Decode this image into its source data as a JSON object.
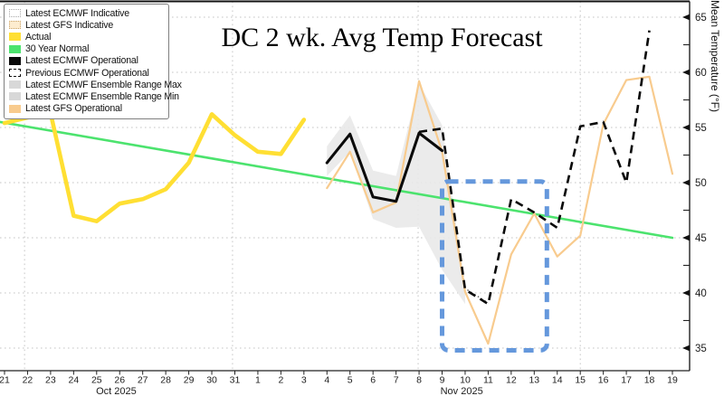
{
  "title": "DC 2 wk. Avg Temp Forecast",
  "axes": {
    "y_label": "Mean Temperature (°F)",
    "y_tick_labels": [
      "35",
      "40",
      "45",
      "50",
      "55",
      "60",
      "65"
    ],
    "months": [
      {
        "label": "Oct 2025",
        "day": 4.85
      },
      {
        "label": "Nov 2025",
        "day": 19.85
      }
    ]
  },
  "legend": {
    "items": [
      {
        "label": "Latest ECMWF Indicative",
        "fill": "#ffffff",
        "border": "dotted",
        "border_color": "#a8a8a8"
      },
      {
        "label": "Latest GFS Indicative",
        "fill": "#fdeccf",
        "border": "dotted",
        "border_color": "#c9a36a"
      },
      {
        "label": "Actual",
        "fill": "#FFDF33",
        "border": "none",
        "border_color": ""
      },
      {
        "label": "30 Year Normal",
        "fill": "#4CE36E",
        "border": "none",
        "border_color": ""
      },
      {
        "label": "Latest ECMWF Operational",
        "fill": "#0a0a0a",
        "border": "none",
        "border_color": ""
      },
      {
        "label": "Previous ECMWF Operational",
        "fill": "#ffffff",
        "border": "dashed",
        "border_color": "#111111"
      },
      {
        "label": "Latest ECMWF Ensemble Range Max",
        "fill": "#d8d8d8",
        "border": "none",
        "border_color": ""
      },
      {
        "label": "Latest ECMWF Ensemble Range Min",
        "fill": "#d8d8d8",
        "border": "none",
        "border_color": ""
      },
      {
        "label": "Latest GFS Operational",
        "fill": "#F8CB8E",
        "border": "none",
        "border_color": ""
      }
    ]
  },
  "chart_data": {
    "type": "line",
    "title": "DC 2 wk. Avg Temp Forecast",
    "ylabel": "Mean Temperature (°F)",
    "x_range": "Oct 21 2025 - Nov 19 2025",
    "ylim": [
      33,
      66.3
    ],
    "x_tick_labels": [
      "21",
      "22",
      "23",
      "24",
      "25",
      "26",
      "27",
      "28",
      "29",
      "30",
      "31",
      "1",
      "2",
      "3",
      "4",
      "5",
      "6",
      "7",
      "8",
      "9",
      "10",
      "11",
      "12",
      "13",
      "14",
      "15",
      "16",
      "17",
      "18",
      "19"
    ],
    "grid": {
      "h_values": [
        35,
        40,
        45,
        50,
        55,
        60,
        65
      ],
      "v_days": [
        0.87,
        9.9,
        17.96,
        25.0
      ],
      "y_minor_values": [
        37.5,
        42.5,
        47.5,
        52.5,
        57.5,
        62.5
      ]
    },
    "series": [
      {
        "key": "normal",
        "name": "30 Year Normal",
        "color": "#4CE36E",
        "width": 2.6,
        "dash": "none",
        "days": [
          -0.2,
          29
        ],
        "values": [
          55.5,
          45.0
        ]
      },
      {
        "key": "actual",
        "name": "Actual",
        "color": "#FFDF33",
        "width": 4.6,
        "dash": "none",
        "days": [
          0,
          1,
          2,
          3,
          4,
          5,
          6,
          7,
          8,
          9,
          10,
          11,
          12,
          13
        ],
        "values": [
          55.4,
          55.9,
          56.3,
          47.0,
          46.5,
          48.1,
          48.5,
          49.4,
          51.8,
          56.2,
          54.3,
          52.8,
          52.6,
          55.7
        ]
      },
      {
        "key": "gfs_ind",
        "name": "Latest GFS Indicative",
        "color": "#F2BE7E",
        "width": 1.4,
        "dash": "1.5 3",
        "days": [
          19,
          20,
          21
        ],
        "values": [
          52.8,
          40.1,
          35.4
        ]
      },
      {
        "key": "ecmwf_ind",
        "name": "Latest ECMWF Indicative",
        "color": "#5a5a5a",
        "width": 1.4,
        "dash": "1.5 3",
        "days": [
          19,
          20,
          21
        ],
        "values": [
          52.9,
          40.4,
          39.1
        ]
      },
      {
        "key": "gfs_op",
        "name": "Latest GFS Operational",
        "color": "#F8CB8E",
        "width": 2.2,
        "dash": "none",
        "days": [
          14,
          15,
          16,
          17,
          18,
          19,
          20,
          21,
          22,
          23,
          24,
          25,
          26,
          27,
          28,
          29
        ],
        "values": [
          49.5,
          52.8,
          47.3,
          48.2,
          59.2,
          52.8,
          40.1,
          35.4,
          43.5,
          47.2,
          43.3,
          45.2,
          55.3,
          59.3,
          59.6,
          50.8
        ]
      },
      {
        "key": "ecmwf_op",
        "name": "Latest ECMWF Operational",
        "color": "#0a0a0a",
        "width": 3.1,
        "dash": "none",
        "days": [
          14,
          15,
          16,
          17,
          18,
          19
        ],
        "values": [
          51.8,
          54.4,
          48.7,
          48.3,
          54.5,
          52.9
        ]
      },
      {
        "key": "prev_ecmwf",
        "name": "Previous ECMWF Operational",
        "color": "#0a0a0a",
        "width": 2.6,
        "dash": "9 6",
        "days": [
          18,
          19,
          20,
          21,
          22,
          23,
          24,
          25,
          26,
          27,
          28
        ],
        "values": [
          54.6,
          54.9,
          40.3,
          39.0,
          48.5,
          47.3,
          45.9,
          55.1,
          55.5,
          50.0,
          63.8
        ]
      }
    ],
    "ensemble_range": {
      "name": "Latest ECMWF Ensemble Range",
      "color": "#E9E9E9",
      "days": [
        14,
        15,
        16,
        17,
        18,
        19,
        20
      ],
      "max": [
        53.3,
        56.1,
        51.1,
        50.6,
        59.0,
        55.2,
        40.5
      ],
      "min": [
        50.6,
        52.8,
        46.7,
        45.9,
        46.0,
        42.1,
        39.0
      ]
    },
    "highlight_box": {
      "color": "#6598DC",
      "day_start": 19.0,
      "day_end": 23.55,
      "temp_low": 34.8,
      "temp_high": 50.1
    }
  }
}
